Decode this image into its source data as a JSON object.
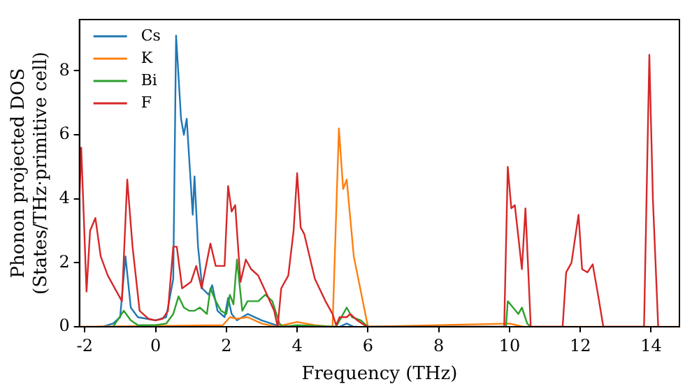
{
  "chart_data": {
    "type": "line",
    "xlabel": "Frequency (THz)",
    "ylabel": "Phonon projected DOS\n(States/THz·primitive cell)",
    "xlim": [
      -2.15,
      14.8
    ],
    "ylim": [
      0,
      9.6
    ],
    "xticks": [
      -2,
      0,
      2,
      4,
      6,
      8,
      10,
      12,
      14
    ],
    "yticks": [
      0,
      2,
      4,
      6,
      8
    ],
    "grid": false,
    "legend": "top left",
    "marker": "none",
    "line_style": "solid",
    "series": [
      {
        "name": "Cs",
        "color": "#1f77b4",
        "x": [
          -1.6,
          -1.5,
          -1.2,
          -1,
          -0.85,
          -0.7,
          -0.5,
          0,
          0.3,
          0.5,
          0.58,
          0.72,
          0.8,
          0.88,
          1.05,
          1.1,
          1.2,
          1.32,
          1.5,
          1.6,
          1.75,
          1.95,
          2.05,
          2.15,
          2.3,
          2.6,
          3,
          3.4,
          4,
          5.2,
          5.4,
          5.6,
          5.7
        ],
        "values": [
          0,
          0,
          0.1,
          0.3,
          2.2,
          0.6,
          0.3,
          0.2,
          0.3,
          1.5,
          9.1,
          6.5,
          6,
          6.5,
          3.5,
          4.7,
          2.5,
          1.2,
          1,
          1.3,
          0.5,
          0.3,
          0.9,
          0.4,
          0.2,
          0.4,
          0.2,
          0.05,
          0,
          0,
          0.1,
          0,
          0
        ]
      },
      {
        "name": "K",
        "color": "#ff7f0e",
        "x": [
          -2.15,
          1.9,
          2.1,
          2.3,
          2.6,
          3,
          3.4,
          4,
          4.5,
          5,
          5.18,
          5.3,
          5.4,
          5.6,
          6,
          10,
          10.2,
          10.4,
          14.8
        ],
        "values": [
          0,
          0.05,
          0.3,
          0.25,
          0.3,
          0.1,
          0,
          0.15,
          0.05,
          0,
          6.2,
          4.3,
          4.6,
          2.2,
          0,
          0.1,
          0.05,
          0,
          0
        ]
      },
      {
        "name": "Bi",
        "color": "#2ca02c",
        "x": [
          -1.2,
          -0.9,
          -0.7,
          -0.5,
          0,
          0.3,
          0.5,
          0.65,
          0.8,
          0.95,
          1.1,
          1.25,
          1.45,
          1.55,
          1.7,
          1.85,
          2,
          2.1,
          2.2,
          2.3,
          2.45,
          2.6,
          2.9,
          3.1,
          3.3,
          3.5,
          3.6,
          4,
          5.1,
          5.4,
          5.55,
          5.8,
          6,
          9.9,
          9.95,
          10.1,
          10.25,
          10.35,
          10.5,
          10.6
        ],
        "values": [
          0,
          0.5,
          0.2,
          0.05,
          0.05,
          0.1,
          0.4,
          0.95,
          0.6,
          0.5,
          0.5,
          0.6,
          0.4,
          1.2,
          0.8,
          0.5,
          0.4,
          1,
          0.7,
          2.1,
          0.5,
          0.8,
          0.8,
          1,
          0.8,
          0.1,
          0,
          0.05,
          0,
          0.6,
          0.3,
          0.2,
          0,
          0,
          0.8,
          0.6,
          0.4,
          0.6,
          0.1,
          0
        ]
      },
      {
        "name": "F",
        "color": "#d62728",
        "x": [
          -2.15,
          -2.1,
          -1.95,
          -1.85,
          -1.7,
          -1.55,
          -1.35,
          -1.1,
          -0.95,
          -0.8,
          -0.65,
          -0.45,
          -0.2,
          0,
          0.2,
          0.35,
          0.5,
          0.6,
          0.75,
          1,
          1.15,
          1.3,
          1.55,
          1.7,
          1.95,
          2.05,
          2.15,
          2.25,
          2.4,
          2.55,
          2.7,
          2.9,
          3.15,
          3.35,
          3.45,
          3.55,
          3.75,
          3.9,
          4,
          4.1,
          4.2,
          4.5,
          4.8,
          5,
          5.1,
          5.2,
          5.4,
          5.5,
          5.7,
          5.9,
          6,
          9.85,
          9.95,
          10.05,
          10.15,
          10.35,
          10.45,
          10.6,
          11.5,
          11.6,
          11.75,
          11.95,
          12.05,
          12.2,
          12.35,
          12.5,
          12.65,
          13.8,
          13.95,
          14.05,
          14.2
        ],
        "values": [
          4,
          5.6,
          1.1,
          3,
          3.4,
          2.2,
          1.6,
          1.1,
          0.8,
          4.6,
          2.5,
          0.5,
          0.25,
          0.2,
          0.25,
          0.5,
          2.5,
          2.5,
          1.2,
          1.4,
          1.9,
          1.2,
          2.6,
          1.9,
          1.9,
          4.4,
          3.6,
          3.8,
          1.4,
          2.1,
          1.8,
          1.6,
          1,
          0.5,
          0,
          1.2,
          1.6,
          3,
          4.8,
          3.1,
          2.9,
          1.5,
          0.8,
          0.4,
          0.05,
          0.3,
          0.3,
          0.4,
          0.2,
          0.05,
          0,
          0,
          5,
          3.7,
          3.8,
          1.8,
          3.7,
          0,
          0,
          1.7,
          2,
          3.5,
          1.8,
          1.7,
          1.95,
          1,
          0,
          0,
          8.5,
          4,
          0
        ]
      }
    ]
  }
}
